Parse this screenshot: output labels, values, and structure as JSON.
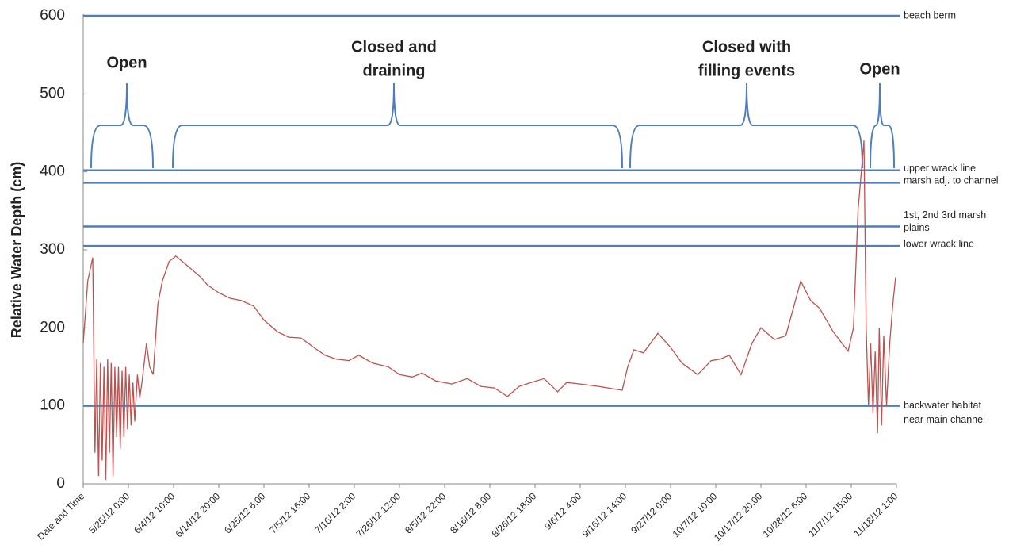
{
  "chart_data": {
    "type": "line",
    "y_label": "Relative Water Depth (cm)",
    "ylim": [
      0,
      600
    ],
    "yticks": [
      0,
      100,
      200,
      300,
      400,
      500,
      600
    ],
    "xlim": [
      0,
      18
    ],
    "xticks": [
      {
        "value": 0,
        "label": "Date and Time"
      },
      {
        "value": 1,
        "label": "5/25/12 0:00"
      },
      {
        "value": 2,
        "label": "6/4/12 10:00"
      },
      {
        "value": 3,
        "label": "6/14/12 20:00"
      },
      {
        "value": 4,
        "label": "6/25/12 6:00"
      },
      {
        "value": 5,
        "label": "7/5/12 16:00"
      },
      {
        "value": 6,
        "label": "7/16/12 2:00"
      },
      {
        "value": 7,
        "label": "7/26/12 12:00"
      },
      {
        "value": 8,
        "label": "8/5/12 22:00"
      },
      {
        "value": 9,
        "label": "8/16/12 8:00"
      },
      {
        "value": 10,
        "label": "8/26/12 18:00"
      },
      {
        "value": 11,
        "label": "9/6/12 4:00"
      },
      {
        "value": 12,
        "label": "9/16/12 14:00"
      },
      {
        "value": 13,
        "label": "9/27/12 0:00"
      },
      {
        "value": 14,
        "label": "10/7/12 10:00"
      },
      {
        "value": 15,
        "label": "10/17/12 20:00"
      },
      {
        "value": 16,
        "label": "10/28/12 6:00"
      },
      {
        "value": 17,
        "label": "11/7/12 15:00"
      },
      {
        "value": 18,
        "label": "11/18/12 1:00"
      }
    ],
    "reference_color": "#4f7dbd",
    "reference_lines": [
      {
        "value": 600,
        "label": [
          "beach berm"
        ]
      },
      {
        "value": 402,
        "label": [
          "upper wrack line"
        ]
      },
      {
        "value": 386,
        "label": [
          "marsh adj. to channel"
        ]
      },
      {
        "value": 330,
        "label": [
          "1st, 2nd 3rd marsh",
          "plains"
        ]
      },
      {
        "value": 305,
        "label": [
          "lower wrack line"
        ]
      },
      {
        "value": 100,
        "label": [
          "backwater habitat",
          "near main channel"
        ]
      }
    ],
    "annotations": [
      {
        "label": [
          "Open"
        ]
      },
      {
        "label": [
          "Closed and",
          "draining"
        ]
      },
      {
        "label": [
          "Closed with",
          "filling events"
        ]
      },
      {
        "label": [
          "Open"
        ]
      }
    ],
    "series": [
      {
        "color": "#c0504d",
        "x": [
          0,
          0.1,
          0.21,
          0.26,
          0.3,
          0.34,
          0.38,
          0.42,
          0.46,
          0.5,
          0.54,
          0.58,
          0.62,
          0.66,
          0.7,
          0.74,
          0.78,
          0.82,
          0.86,
          0.9,
          0.94,
          0.98,
          1.02,
          1.06,
          1.1,
          1.14,
          1.2,
          1.25,
          1.3,
          1.4,
          1.47,
          1.55,
          1.65,
          1.75,
          1.9,
          2.05,
          2.3,
          2.6,
          2.75,
          3.0,
          3.25,
          3.5,
          3.77,
          4.0,
          4.3,
          4.55,
          4.82,
          5.1,
          5.35,
          5.6,
          5.88,
          6.1,
          6.4,
          6.75,
          7.0,
          7.28,
          7.5,
          7.8,
          8.16,
          8.5,
          8.8,
          9.1,
          9.39,
          9.65,
          9.91,
          10.2,
          10.5,
          10.7,
          11.0,
          11.4,
          11.93,
          12.05,
          12.19,
          12.4,
          12.72,
          13.0,
          13.25,
          13.6,
          13.9,
          14.1,
          14.3,
          14.56,
          14.8,
          15.0,
          15.3,
          15.55,
          15.88,
          16.1,
          16.3,
          16.6,
          16.93,
          17.05,
          17.15,
          17.28,
          17.33,
          17.38,
          17.43,
          17.48,
          17.53,
          17.58,
          17.62,
          17.67,
          17.72,
          17.78,
          17.85,
          17.92,
          17.98
        ],
        "values": [
          180,
          260,
          290,
          40,
          160,
          10,
          155,
          30,
          150,
          5,
          160,
          40,
          155,
          10,
          150,
          60,
          150,
          45,
          145,
          60,
          150,
          70,
          140,
          75,
          130,
          80,
          140,
          110,
          130,
          180,
          150,
          140,
          230,
          260,
          285,
          292,
          280,
          265,
          255,
          245,
          238,
          235,
          228,
          210,
          195,
          188,
          187,
          175,
          165,
          160,
          158,
          165,
          155,
          150,
          140,
          137,
          142,
          132,
          128,
          135,
          125,
          123,
          112,
          125,
          130,
          135,
          118,
          130,
          128,
          125,
          120,
          150,
          172,
          168,
          193,
          175,
          155,
          140,
          158,
          160,
          165,
          140,
          180,
          200,
          185,
          190,
          260,
          235,
          225,
          195,
          170,
          200,
          350,
          440,
          200,
          100,
          180,
          90,
          170,
          65,
          200,
          75,
          190,
          100,
          180,
          230,
          265
        ]
      }
    ]
  }
}
